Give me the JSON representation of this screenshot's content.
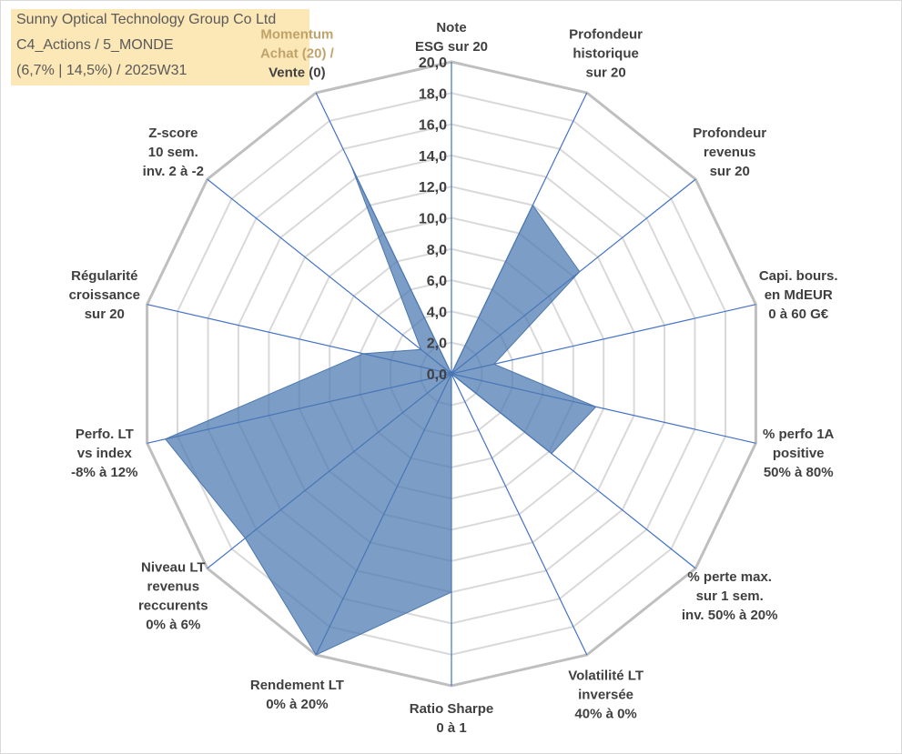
{
  "title": {
    "line1": "Sunny Optical Technology Group Co Ltd",
    "line2": "C4_Actions / 5_MONDE",
    "line3": "(6,7% | 14,5%) / 2025W31"
  },
  "colors": {
    "fill": "#4a77b0",
    "axis": "#4472c4",
    "grid_outer": "#bfbfbf",
    "grid_inner": "#d9d9d9",
    "title_bg": "#fce7b6",
    "highlight_text": "#bfa36b"
  },
  "chart_data": {
    "type": "radar",
    "title": "",
    "r_range": [
      0,
      20
    ],
    "r_ticks": [
      "0,0",
      "2,0",
      "4,0",
      "6,0",
      "8,0",
      "10,0",
      "12,0",
      "14,0",
      "16,0",
      "18,0",
      "20,0"
    ],
    "grid": true,
    "categories": [
      [
        "Note",
        "ESG sur 20"
      ],
      [
        "Profondeur",
        "historique",
        "sur 20"
      ],
      [
        "Profondeur",
        "revenus",
        "sur 20"
      ],
      [
        "Capi. bours.",
        "en MdEUR",
        "0 à 60 G€"
      ],
      [
        "% perfo 1A",
        "positive",
        "50% à 80%"
      ],
      [
        "% perte max.",
        "sur 1 sem.",
        "inv. 50% à 20%"
      ],
      [
        "Volatilité LT",
        "inversée",
        "40% à 0%"
      ],
      [
        "Ratio Sharpe",
        "0 à 1"
      ],
      [
        "Rendement LT",
        "0% à 20%"
      ],
      [
        "Niveau LT",
        "revenus",
        "reccurents",
        "0% à 6%"
      ],
      [
        "Perfo. LT",
        "vs index",
        "-8% à 12%"
      ],
      [
        "Régularité",
        "croissance",
        "sur 20"
      ],
      [
        "Z-score",
        "10 sem.",
        "inv. 2 à -2"
      ],
      [
        "Momentum",
        "Achat (20) /",
        "Vente (0)"
      ]
    ],
    "highlight_lines": {
      "13": [
        0,
        1
      ]
    },
    "series": [
      {
        "values": [
          0.0,
          12.0,
          10.5,
          2.8,
          9.5,
          8.2,
          0.0,
          14.0,
          20.0,
          16.9,
          18.8,
          5.8,
          2.5,
          14.8
        ]
      }
    ]
  }
}
